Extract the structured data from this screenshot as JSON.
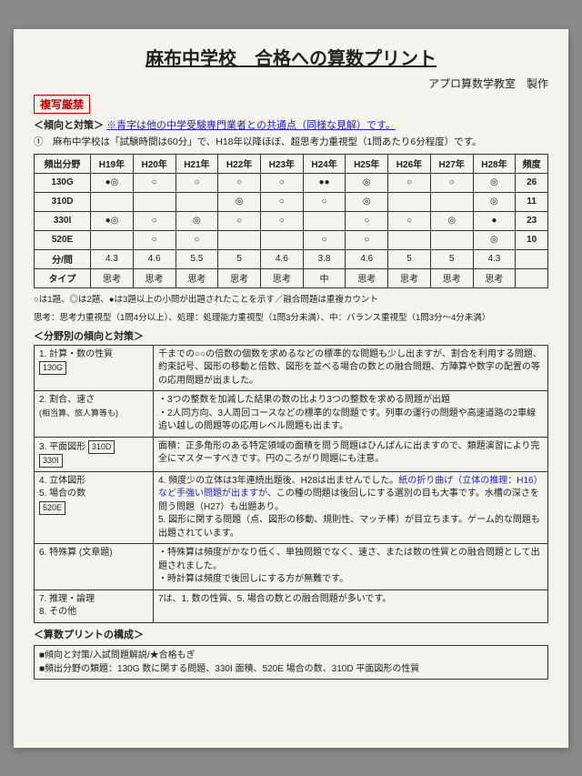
{
  "title": "麻布中学校　合格への算数プリント",
  "credit": "アプロ算数学教室　製作",
  "stamp": "複写厳禁",
  "trend_label": "＜傾向と対策＞",
  "trend_blue": "※青字は他の中学受験専門業者との共通点（同様な見解）です。",
  "note_circled": "①　麻布中学校は「試験時間は60分」で、H18年以降ほぼ、超思考力重視型（1問あたり6分程度）です。",
  "freq_header": [
    "頻出分野",
    "H19年",
    "H20年",
    "H21年",
    "H22年",
    "H23年",
    "H24年",
    "H25年",
    "H26年",
    "H27年",
    "H28年",
    "頻度"
  ],
  "freq_rows": [
    {
      "cat": "130G",
      "cells": [
        "●◎",
        "○",
        "○",
        "○",
        "○",
        "●●",
        "◎",
        "○",
        "○",
        "◎"
      ],
      "count": "26"
    },
    {
      "cat": "310D",
      "cells": [
        "",
        "",
        "",
        "◎",
        "○",
        "○",
        "◎",
        "",
        "",
        "◎"
      ],
      "count": "11"
    },
    {
      "cat": "330I",
      "cells": [
        "●◎",
        "○",
        "◎",
        "○",
        "○",
        "",
        "○",
        "○",
        "◎",
        "●"
      ],
      "count": "23"
    },
    {
      "cat": "520E",
      "cells": [
        "",
        "○",
        "○",
        "",
        "",
        "○",
        "○",
        "",
        "",
        "◎"
      ],
      "count": "10"
    },
    {
      "cat": "分/問",
      "cells": [
        "4.3",
        "4.6",
        "5.5",
        "5",
        "4.6",
        "3.8",
        "4.6",
        "5",
        "5",
        "4.3"
      ],
      "count": ""
    },
    {
      "cat": "タイプ",
      "cells": [
        "思考",
        "思考",
        "思考",
        "思考",
        "思考",
        "中",
        "思考",
        "思考",
        "思考",
        "思考"
      ],
      "count": ""
    }
  ],
  "legend1": "○は1題、◎は2題、●は3題以上の小問が出題されたことを示す／融合問題は重複カウント",
  "legend2": "思考：思考力重視型（1問4分以上）、処理：処理能力重視型（1問3分未満）、中：バランス重視型（1問3分～4分未満）",
  "subhead_topics": "＜分野別の傾向と対策＞",
  "topics": [
    {
      "label": "1. 計算・数の性質",
      "code": "130G",
      "text": "千までの○○の倍数の個数を求めるなどの標準的な問題も少し出ますが、割合を利用する問題、約束記号、図形の移動と倍数、図形を並べる場合の数との融合問題、方陣算や数字の配置の等の応用問題が出ました。"
    },
    {
      "label": "2. 割合、速さ",
      "sub": "(相当算、旅人算等も)",
      "text": "・3つの整数を加減した結果の数の比より3つの整数を求める問題が出題\n・2人同方向、3人周回コースなどの標準的な問題です。列車の運行の問題や高速道路の2車線追い越しの問題等の応用レベル問題も出ます。"
    },
    {
      "label": "3. 平面図形 ",
      "code1": "310D",
      "code2": "330I",
      "text": "面積：正多角形のある特定領域の面積を問う問題はひんぱんに出ますので、類題演習により完全にマスターすべきです。円のころがり問題にも注意。"
    },
    {
      "label": "4. 立体図形\n5. 場合の数",
      "code": "520E",
      "text_pre": "4. 頻度少の立体は3年連続出題後、H28は出ませんでした。",
      "text_blue": "紙の折り曲げ（立体の推理：H16）など手強い問題が出ますが",
      "text_post": "、この種の問題は後回しにする選別の目も大事です。水槽の深さを問う問題（H27）も出題あり。\n5. 図形に関する問題（点、図形の移動、規則性、マッチ棒）が目立ちます。ゲーム的な問題も出題されています。"
    },
    {
      "label": "6. 特殊算 (文章題)",
      "text": "・特殊算は頻度がかなり低く、単独問題でなく、速さ、または数の性質との融合問題として出題されました。\n・時計算は頻度で後回しにする方が無難です。"
    },
    {
      "label": "7. 推理・論理\n8. その他",
      "text": "7は、1. 数の性質、5. 場合の数との融合問題が多いです。"
    }
  ],
  "subhead_comp": "＜算数プリントの構成＞",
  "comp1": "■傾向と対策/入試問題解説/★合格もぎ",
  "comp2": "■頻出分野の類題：130G 数に関する問題、330I 面積、520E 場合の数、310D 平面図形の性質"
}
